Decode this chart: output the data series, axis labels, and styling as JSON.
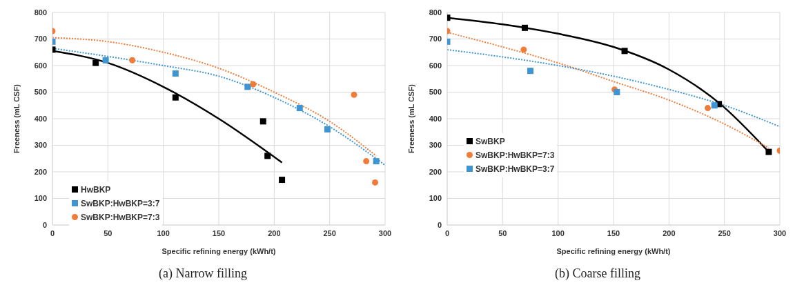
{
  "chart_data": [
    {
      "type": "scatter",
      "title": "(a) Narrow filling",
      "xlabel": "Specific refining energy (kWh/t)",
      "ylabel": "Freeness (mL CSF)",
      "xlim": [
        0,
        300
      ],
      "xticks": [
        0,
        50,
        100,
        150,
        200,
        250,
        300
      ],
      "ylim": [
        0,
        800
      ],
      "yticks": [
        0,
        100,
        200,
        300,
        400,
        500,
        600,
        700,
        800
      ],
      "grid": true,
      "legend": "bottom left",
      "series": [
        {
          "name": "HwBKP",
          "color": "#000000",
          "marker": "square",
          "x": [
            0,
            39,
            111,
            190,
            194,
            207
          ],
          "values": [
            660,
            610,
            480,
            390,
            260,
            170
          ]
        },
        {
          "name": "SwBKP:HwBKP=3:7",
          "color": "#3e95d1",
          "marker": "square",
          "x": [
            0,
            48,
            111,
            176,
            223,
            248,
            292
          ],
          "values": [
            690,
            620,
            570,
            520,
            440,
            360,
            240
          ]
        },
        {
          "name": "SwBKP:HwBKP=7:3",
          "color": "#f07c3a",
          "marker": "circle",
          "x": [
            0,
            72,
            181,
            272,
            283,
            291
          ],
          "values": [
            730,
            620,
            530,
            490,
            240,
            160
          ]
        },
        {
          "type": "line",
          "color": "#000000",
          "line_style": "solid",
          "x": [
            0,
            50,
            100,
            150,
            207
          ],
          "values": [
            655,
            610,
            520,
            400,
            235
          ]
        },
        {
          "type": "line",
          "color": "#3e95d1",
          "line_style": "dotted",
          "x": [
            0,
            100,
            150,
            200,
            250,
            300
          ],
          "values": [
            665,
            600,
            560,
            480,
            370,
            225
          ]
        },
        {
          "type": "line",
          "color": "#f07c3a",
          "line_style": "dotted",
          "x": [
            0,
            50,
            100,
            150,
            200,
            250,
            292
          ],
          "values": [
            705,
            690,
            650,
            590,
            500,
            390,
            260
          ]
        }
      ]
    },
    {
      "type": "scatter",
      "title": "(b) Coarse filling",
      "xlabel": "Specific refining energy (kWh/t)",
      "ylabel": "Freeness (mL CSF)",
      "xlim": [
        0,
        300
      ],
      "xticks": [
        0,
        50,
        100,
        150,
        200,
        250,
        300
      ],
      "ylim": [
        0,
        800
      ],
      "yticks": [
        0,
        100,
        200,
        300,
        400,
        500,
        600,
        700,
        800
      ],
      "grid": true,
      "legend": "left",
      "series": [
        {
          "name": "SwBKP",
          "color": "#000000",
          "marker": "square",
          "x": [
            0,
            70,
            160,
            245,
            290
          ],
          "values": [
            780,
            742,
            655,
            455,
            275
          ]
        },
        {
          "name": "SwBKP:HwBKP=7:3",
          "color": "#f07c3a",
          "marker": "circle",
          "x": [
            0,
            69,
            151,
            235,
            300
          ],
          "values": [
            730,
            660,
            510,
            440,
            280
          ]
        },
        {
          "name": "SwBKP:HwBKP=3:7",
          "color": "#3e95d1",
          "marker": "square",
          "x": [
            0,
            75,
            153,
            241
          ],
          "values": [
            690,
            580,
            500,
            450
          ]
        },
        {
          "type": "line",
          "color": "#000000",
          "line_style": "solid",
          "x": [
            0,
            50,
            100,
            150,
            200,
            245,
            290
          ],
          "values": [
            780,
            755,
            720,
            670,
            585,
            460,
            275
          ]
        },
        {
          "type": "line",
          "color": "#f07c3a",
          "line_style": "dotted",
          "x": [
            0,
            50,
            100,
            150,
            200,
            250,
            290
          ],
          "values": [
            725,
            670,
            610,
            540,
            470,
            380,
            290
          ]
        },
        {
          "type": "line",
          "color": "#3e95d1",
          "line_style": "dotted",
          "x": [
            0,
            100,
            150,
            200,
            250,
            300
          ],
          "values": [
            660,
            600,
            560,
            510,
            450,
            370
          ]
        }
      ]
    }
  ]
}
